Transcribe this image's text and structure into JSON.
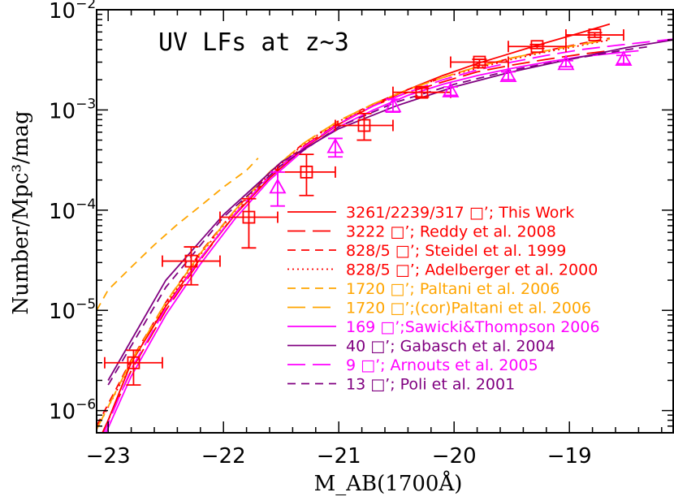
{
  "chart_data": {
    "type": "line",
    "title": "UV LFs at z~3",
    "xlabel": "M_AB(1700Å)",
    "ylabel": "Number/Mpc³/mag",
    "x_axis": {
      "range": [
        -23.1,
        -18.1
      ],
      "major_ticks": [
        -23,
        -22,
        -21,
        -20,
        -19
      ],
      "tick_labels": [
        "−23",
        "−22",
        "−21",
        "−20",
        "−19"
      ]
    },
    "y_axis": {
      "scale": "log",
      "range": [
        6e-07,
        0.01
      ],
      "major_ticks": [
        1e-06,
        1e-05,
        0.0001,
        0.001,
        0.01
      ],
      "tick_labels": [
        {
          "base": "10",
          "exp": "−6"
        },
        {
          "base": "10",
          "exp": "−5"
        },
        {
          "base": "10",
          "exp": "−4"
        },
        {
          "base": "10",
          "exp": "−3"
        },
        {
          "base": "10",
          "exp": "−2"
        }
      ]
    },
    "grid": false,
    "legend_position": "lower-right",
    "series": [
      {
        "name": "3261/2239/317 □’; This Work",
        "label_color": "#ff0000",
        "color": "#ff0000",
        "dash": "solid",
        "x": [
          -23.1,
          -23.0,
          -22.8,
          -22.5,
          -22.2,
          -21.9,
          -21.6,
          -21.3,
          -21.0,
          -20.7,
          -20.4,
          -20.1,
          -19.8,
          -19.5,
          -19.2,
          -18.9,
          -18.65
        ],
        "y": [
          4e-07,
          8e-07,
          3e-06,
          1.1e-05,
          3.3e-05,
          9e-05,
          0.00021,
          0.00042,
          0.00072,
          0.0011,
          0.0016,
          0.0022,
          0.0029,
          0.0037,
          0.0047,
          0.0059,
          0.0072
        ]
      },
      {
        "name": "3222 □’; Reddy et al. 2008",
        "label_color": "#ff0000",
        "color": "#ff0000",
        "dash": "long",
        "x": [
          -23.05,
          -22.8,
          -22.5,
          -22.2,
          -21.9,
          -21.6,
          -21.3,
          -21.0,
          -20.7,
          -20.4,
          -20.1,
          -19.8,
          -19.5,
          -19.2,
          -18.9,
          -18.65
        ],
        "y": [
          6e-07,
          2.5e-06,
          1e-05,
          3.2e-05,
          9.2e-05,
          0.00022,
          0.00044,
          0.00074,
          0.0011,
          0.0015,
          0.0019,
          0.0024,
          0.0028,
          0.0032,
          0.0036,
          0.0039
        ]
      },
      {
        "name": "828/5 □’; Steidel et al. 1999",
        "label_color": "#ff0000",
        "color": "#ff0000",
        "dash": "short",
        "x": [
          -23.1,
          -22.8,
          -22.5,
          -22.2,
          -21.9,
          -21.6,
          -21.3,
          -21.0,
          -20.7,
          -20.4,
          -20.1,
          -19.8,
          -19.5,
          -19.2,
          -18.9,
          -18.65
        ],
        "y": [
          7e-07,
          3.2e-06,
          1.2e-05,
          3.8e-05,
          0.0001,
          0.00024,
          0.00047,
          0.00078,
          0.00115,
          0.0016,
          0.0021,
          0.0027,
          0.0033,
          0.0039,
          0.0046,
          0.0052
        ]
      },
      {
        "name": "828/5 □’; Adelberger et al. 2000",
        "label_color": "#ff0000",
        "color": "#ff0000",
        "dash": "dotted",
        "x": [
          -23.1,
          -22.8,
          -22.5,
          -22.2,
          -21.9,
          -21.6,
          -21.3,
          -21.0,
          -20.7,
          -20.4,
          -20.1,
          -19.8,
          -19.5,
          -19.2,
          -18.9,
          -18.65
        ],
        "y": [
          6.5e-07,
          3e-06,
          1.15e-05,
          3.6e-05,
          9.8e-05,
          0.00023,
          0.00046,
          0.00077,
          0.00113,
          0.0016,
          0.0021,
          0.0026,
          0.0032,
          0.0038,
          0.0044,
          0.005
        ]
      },
      {
        "name": "1720 □’; Paltani et al. 2006",
        "label_color": "#ffa500",
        "color": "#ffa500",
        "dash": "short",
        "x": [
          -23.1,
          -23.0,
          -22.8,
          -22.6,
          -22.4,
          -22.2,
          -22.0,
          -21.8,
          -21.7
        ],
        "y": [
          1e-05,
          1.6e-05,
          2.7e-05,
          4.5e-05,
          7.2e-05,
          0.00011,
          0.00017,
          0.00025,
          0.00033
        ]
      },
      {
        "name": "1720 □’;(cor)Paltani et al. 2006",
        "label_color": "#ffa500",
        "color": "#ffa500",
        "dash": "long",
        "x": [
          -23.1,
          -22.8,
          -22.5,
          -22.2,
          -21.9,
          -21.6,
          -21.3,
          -21.0,
          -20.7,
          -20.4,
          -20.1,
          -19.8,
          -19.5,
          -19.2,
          -18.9,
          -18.65
        ],
        "y": [
          6.5e-07,
          3.1e-06,
          1.2e-05,
          3.7e-05,
          0.0001,
          0.00024,
          0.00047,
          0.00078,
          0.00115,
          0.0016,
          0.0021,
          0.0027,
          0.0033,
          0.0039,
          0.0045,
          0.0051
        ]
      },
      {
        "name": "169 □’;Sawicki&Thompson 2006",
        "label_color": "#ff00ff",
        "color": "#ff00ff",
        "dash": "solid",
        "x": [
          -23.05,
          -22.8,
          -22.5,
          -22.2,
          -21.9,
          -21.6,
          -21.3,
          -21.0,
          -20.7,
          -20.4,
          -20.1,
          -19.8,
          -19.5,
          -19.2,
          -18.9,
          -18.6,
          -18.4
        ],
        "y": [
          5e-07,
          2.2e-06,
          9e-06,
          2.9e-05,
          8.2e-05,
          0.0002,
          0.0004,
          0.00068,
          0.001,
          0.0014,
          0.0018,
          0.0022,
          0.0026,
          0.003,
          0.0034,
          0.0037,
          0.0039
        ]
      },
      {
        "name": "40 □’; Gabasch et al. 2004",
        "label_color": "#800080",
        "color": "#800080",
        "dash": "solid",
        "x": [
          -23.0,
          -22.5,
          -22.0,
          -21.5,
          -21.0,
          -20.5,
          -20.0,
          -19.5,
          -19.0,
          -18.5,
          -18.1
        ],
        "y": [
          2e-06,
          2e-05,
          9e-05,
          0.0003,
          0.00065,
          0.0011,
          0.0017,
          0.0024,
          0.0032,
          0.0042,
          0.005
        ]
      },
      {
        "name": "9 □’; Arnouts et al. 2005",
        "label_color": "#ff00ff",
        "color": "#ff00ff",
        "dash": "long",
        "x": [
          -23.05,
          -22.8,
          -22.5,
          -22.2,
          -21.9,
          -21.6,
          -21.3,
          -21.0,
          -20.7,
          -20.4,
          -20.1,
          -19.8,
          -19.5,
          -19.2,
          -18.9,
          -18.6,
          -18.3,
          -18.1
        ],
        "y": [
          5.5e-07,
          2.6e-06,
          1.05e-05,
          3.3e-05,
          9.2e-05,
          0.00022,
          0.00043,
          0.00073,
          0.0011,
          0.0015,
          0.002,
          0.0025,
          0.003,
          0.0035,
          0.004,
          0.0044,
          0.0048,
          0.0051
        ]
      },
      {
        "name": "13 □’; Poli et al. 2001",
        "label_color": "#800080",
        "color": "#800080",
        "dash": "short",
        "x": [
          -23.0,
          -22.5,
          -22.0,
          -21.5,
          -21.0,
          -20.5,
          -20.0,
          -19.5,
          -19.0,
          -18.5,
          -18.3
        ],
        "y": [
          1.8e-06,
          1.7e-05,
          8.5e-05,
          0.00028,
          0.00068,
          0.0012,
          0.0018,
          0.0025,
          0.0032,
          0.004,
          0.0043
        ]
      }
    ],
    "data_points": [
      {
        "set": "This Work",
        "marker": "square",
        "color": "#ff0000",
        "points": [
          {
            "x": -22.78,
            "y": 3e-06,
            "xerr": 0.25,
            "ylo": 1.8e-06,
            "yhi": 4e-06
          },
          {
            "x": -22.28,
            "y": 3.1e-05,
            "xerr": 0.25,
            "ylo": 1.8e-05,
            "yhi": 4.3e-05
          },
          {
            "x": -21.78,
            "y": 8.5e-05,
            "xerr": 0.25,
            "ylo": 4.2e-05,
            "yhi": 0.00013
          },
          {
            "x": -21.28,
            "y": 0.00024,
            "xerr": 0.25,
            "ylo": 0.00014,
            "yhi": 0.00036
          },
          {
            "x": -20.78,
            "y": 0.0007,
            "xerr": 0.25,
            "ylo": 0.0005,
            "yhi": 0.00092
          },
          {
            "x": -20.28,
            "y": 0.0015,
            "xerr": 0.25,
            "ylo": 0.00135,
            "yhi": 0.00165
          },
          {
            "x": -19.78,
            "y": 0.003,
            "xerr": 0.25,
            "ylo": 0.0028,
            "yhi": 0.0032
          },
          {
            "x": -19.28,
            "y": 0.0043,
            "xerr": 0.25,
            "ylo": 0.0041,
            "yhi": 0.0045
          },
          {
            "x": -18.78,
            "y": 0.0056,
            "xerr": 0.25,
            "ylo": 0.0053,
            "yhi": 0.0059
          }
        ]
      },
      {
        "set": "Sawicki&Thompson 2006",
        "marker": "triangle",
        "color": "#ff00ff",
        "points": [
          {
            "x": -21.53,
            "y": 0.00017,
            "xerr": 0,
            "ylo": 0.00011,
            "yhi": 0.00024
          },
          {
            "x": -21.03,
            "y": 0.00043,
            "xerr": 0,
            "ylo": 0.00034,
            "yhi": 0.00052
          },
          {
            "x": -20.53,
            "y": 0.0011,
            "xerr": 0,
            "ylo": 0.00095,
            "yhi": 0.00128
          },
          {
            "x": -20.03,
            "y": 0.00155,
            "xerr": 0,
            "ylo": 0.0014,
            "yhi": 0.0017
          },
          {
            "x": -19.53,
            "y": 0.0022,
            "xerr": 0,
            "ylo": 0.002,
            "yhi": 0.0024
          },
          {
            "x": -19.03,
            "y": 0.0029,
            "xerr": 0,
            "ylo": 0.0027,
            "yhi": 0.0031
          },
          {
            "x": -18.53,
            "y": 0.0032,
            "xerr": 0,
            "ylo": 0.0029,
            "yhi": 0.0035
          }
        ]
      }
    ]
  }
}
